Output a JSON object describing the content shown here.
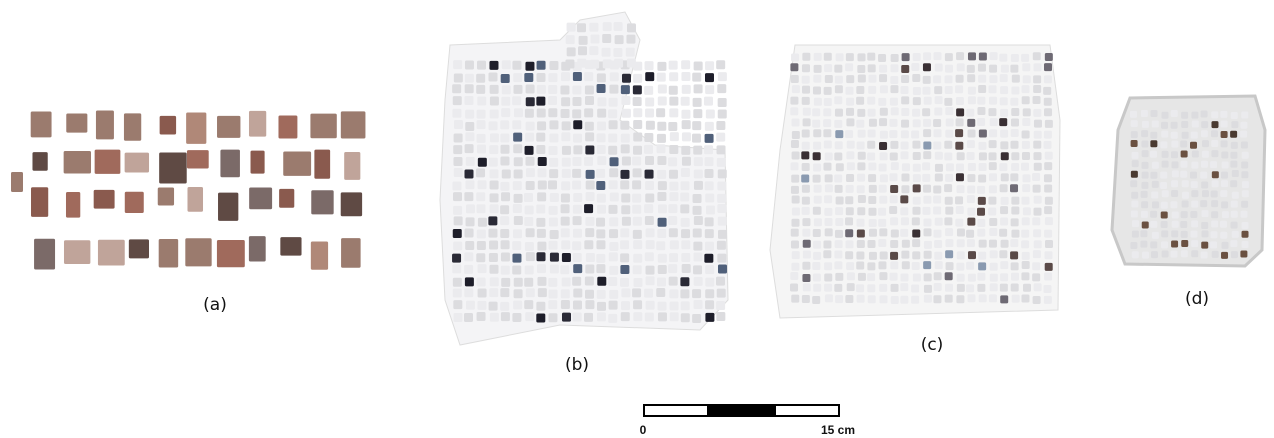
{
  "panels": [
    {
      "label": "(a)"
    },
    {
      "label": "(b)"
    },
    {
      "label": "(c)"
    },
    {
      "label": "(d)"
    }
  ],
  "scale_bar": {
    "start_label": "0",
    "end_label": "15 cm"
  }
}
